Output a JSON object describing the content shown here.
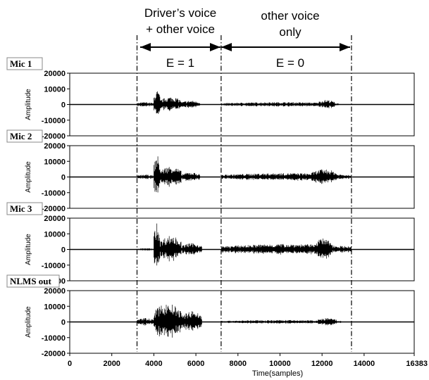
{
  "annotations": {
    "region1_line1": "Driver’s voice",
    "region1_line2": "+ other voice",
    "region2_line1": "other voice",
    "region2_line2": "only",
    "e1": "E = 1",
    "e0": "E = 0"
  },
  "chart_data": {
    "type": "line",
    "xlabel": "Time(samples)",
    "ylabel": "Amplitude",
    "xlim": [
      0,
      16383
    ],
    "ylim": [
      -20000,
      20000
    ],
    "x_ticks": [
      0,
      2000,
      4000,
      6000,
      8000,
      10000,
      12000,
      14000,
      16383
    ],
    "y_ticks": [
      20000,
      10000,
      0,
      -10000,
      -20000
    ],
    "region_boundaries_x": [
      3200,
      7200,
      13400
    ],
    "regions": [
      {
        "label": "E = 1",
        "x_range": [
          3200,
          7200
        ],
        "description_lines": [
          "Driver’s voice",
          "+ other voice"
        ]
      },
      {
        "label": "E = 0",
        "x_range": [
          7200,
          13400
        ],
        "description_lines": [
          "other voice",
          "only"
        ]
      }
    ],
    "panels": [
      {
        "name": "Mic 1",
        "segments": [
          {
            "x_range": [
              3200,
              4000
            ],
            "peak": 1500
          },
          {
            "x_range": [
              4000,
              4300
            ],
            "peak": 9000
          },
          {
            "x_range": [
              4300,
              5300
            ],
            "peak": 5000
          },
          {
            "x_range": [
              5300,
              6200
            ],
            "peak": 2500
          },
          {
            "x_range": [
              7200,
              12800
            ],
            "peak": 1500
          },
          {
            "x_range": [
              11800,
              12600
            ],
            "peak": 3000
          }
        ]
      },
      {
        "name": "Mic 2",
        "segments": [
          {
            "x_range": [
              3200,
              4000
            ],
            "peak": 1500
          },
          {
            "x_range": [
              4000,
              4300
            ],
            "peak": 14000
          },
          {
            "x_range": [
              4300,
              5300
            ],
            "peak": 7000
          },
          {
            "x_range": [
              5300,
              6200
            ],
            "peak": 3000
          },
          {
            "x_range": [
              7200,
              13400
            ],
            "peak": 2500
          },
          {
            "x_range": [
              11500,
              12700
            ],
            "peak": 5000
          }
        ]
      },
      {
        "name": "Mic 3",
        "segments": [
          {
            "x_range": [
              3200,
              4000
            ],
            "peak": 800
          },
          {
            "x_range": [
              4000,
              4300
            ],
            "peak": 17000
          },
          {
            "x_range": [
              4300,
              5300
            ],
            "peak": 9000
          },
          {
            "x_range": [
              5300,
              6300
            ],
            "peak": 4000
          },
          {
            "x_range": [
              7200,
              13400
            ],
            "peak": 3500
          },
          {
            "x_range": [
              11600,
              12500
            ],
            "peak": 7000
          }
        ]
      },
      {
        "name": "NLMS out",
        "segments": [
          {
            "x_range": [
              3200,
              4000
            ],
            "peak": 2500
          },
          {
            "x_range": [
              4000,
              5300
            ],
            "peak": 12000
          },
          {
            "x_range": [
              5300,
              6300
            ],
            "peak": 7000
          },
          {
            "x_range": [
              7200,
              12900
            ],
            "peak": 1200
          },
          {
            "x_range": [
              11800,
              12700
            ],
            "peak": 2500
          }
        ]
      }
    ]
  }
}
